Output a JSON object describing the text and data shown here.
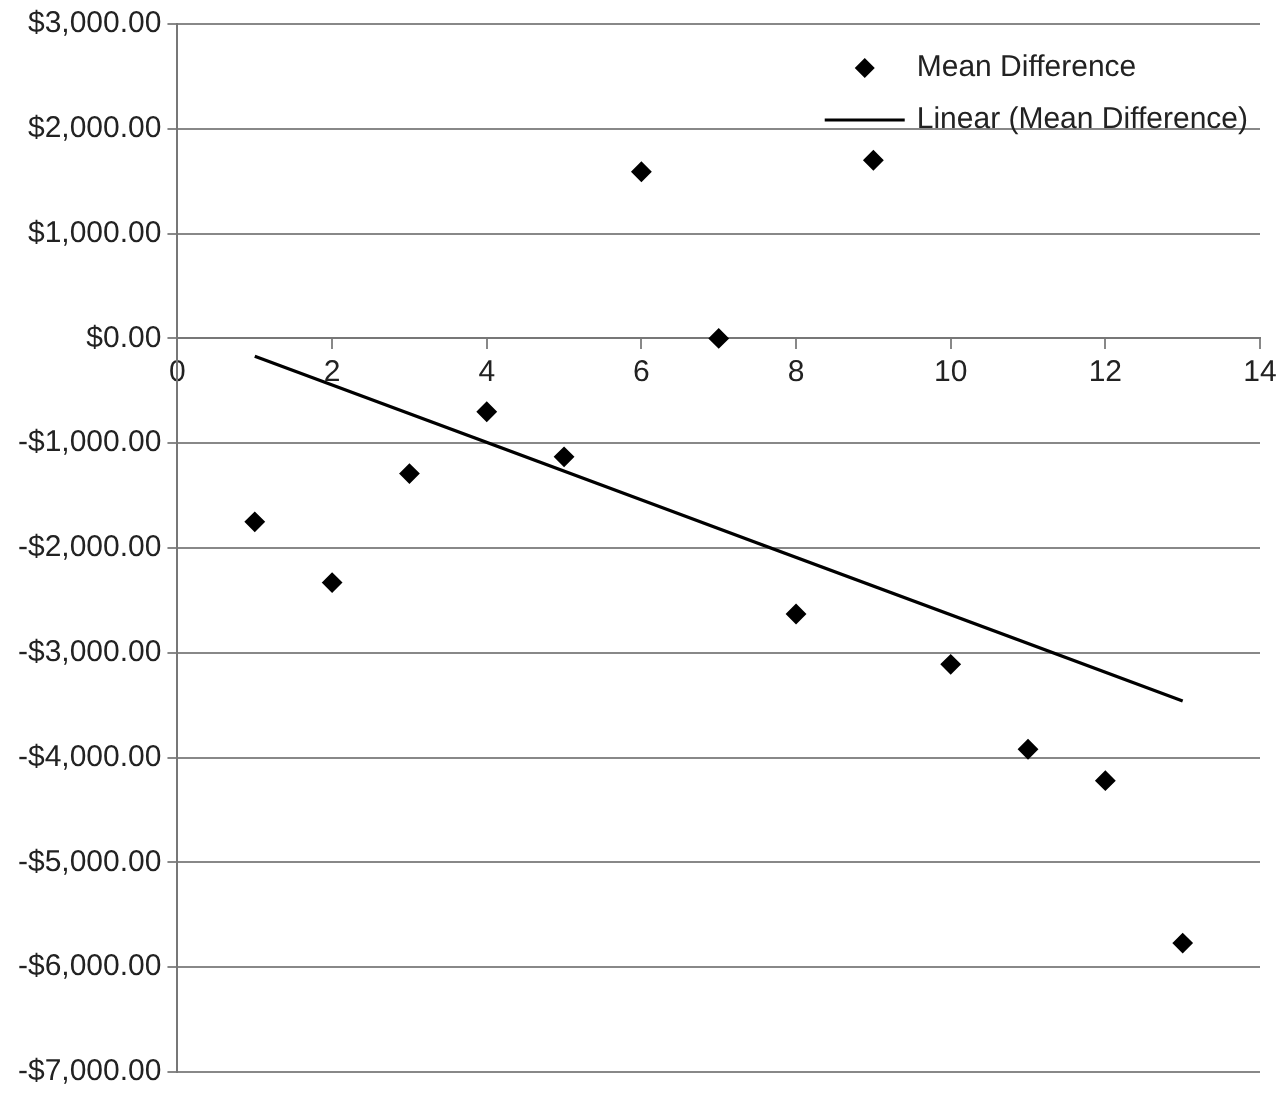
{
  "chart_data": {
    "type": "scatter",
    "x": [
      1,
      2,
      3,
      4,
      5,
      6,
      7,
      8,
      9,
      10,
      11,
      12,
      13
    ],
    "series": [
      {
        "name": "Mean Difference",
        "color": "#000000",
        "values": [
          -1750,
          -2330,
          -1290,
          -700,
          -1130,
          1590,
          0,
          -2630,
          1700,
          -3110,
          -3920,
          -4220,
          -5770
        ]
      },
      {
        "name": "Linear (Mean Difference)",
        "type": "line",
        "color": "#000000",
        "x": [
          1,
          13
        ],
        "values": [
          -170,
          -3460
        ],
        "marker": "none"
      }
    ],
    "xlim": [
      0,
      14
    ],
    "xticks": [
      0,
      2,
      4,
      6,
      8,
      10,
      12,
      14
    ],
    "ylim": [
      -7000,
      3000
    ],
    "yticks": [
      {
        "value": 3000,
        "label": "$3,000.00"
      },
      {
        "value": 2000,
        "label": "$2,000.00"
      },
      {
        "value": 1000,
        "label": "$1,000.00"
      },
      {
        "value": 0,
        "label": "$0.00"
      },
      {
        "value": -1000,
        "label": "-$1,000.00"
      },
      {
        "value": -2000,
        "label": "-$2,000.00"
      },
      {
        "value": -3000,
        "label": "-$3,000.00"
      },
      {
        "value": -4000,
        "label": "-$4,000.00"
      },
      {
        "value": -5000,
        "label": "-$5,000.00"
      },
      {
        "value": -6000,
        "label": "-$6,000.00"
      },
      {
        "value": -7000,
        "label": "-$7,000.00"
      }
    ],
    "grid": "y",
    "legend": "top right",
    "marker": "diamond"
  }
}
